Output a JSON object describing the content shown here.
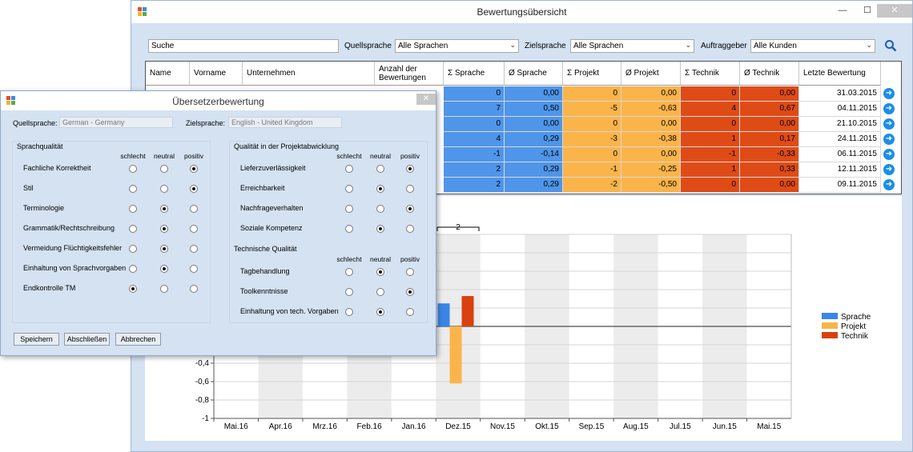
{
  "main_window": {
    "title": "Bewertungsübersicht",
    "controls": {
      "minimize": "—",
      "maximize": "☐",
      "close": "✕"
    }
  },
  "filters": {
    "search_value": "Suche",
    "source_label": "Quellsprache",
    "source_value": "Alle Sprachen",
    "target_label": "Zielsprache",
    "target_value": "Alle Sprachen",
    "client_label": "Auftraggeber",
    "client_value": "Alle Kunden"
  },
  "table": {
    "headers": [
      "Name",
      "Vorname",
      "Unternehmen",
      "Anzahl der Bewertungen",
      "Σ Sprache",
      "Ø Sprache",
      "Σ Projekt",
      "Ø Projekt",
      "Σ Technik",
      "Ø Technik",
      "Letzte Bewertung"
    ],
    "rows": [
      [
        "0",
        "0,00",
        "0",
        "0,00",
        "0",
        "0,00",
        "31.03.2015"
      ],
      [
        "7",
        "0,50",
        "-5",
        "-0,63",
        "4",
        "0,67",
        "04.11.2015"
      ],
      [
        "0",
        "0,00",
        "0",
        "0,00",
        "0",
        "0,00",
        "21.10.2015"
      ],
      [
        "4",
        "0,29",
        "-3",
        "-0,38",
        "1",
        "0,17",
        "24.11.2015"
      ],
      [
        "-1",
        "-0,14",
        "0",
        "0,00",
        "-1",
        "-0,33",
        "06.11.2015"
      ],
      [
        "2",
        "0,29",
        "-1",
        "-0,25",
        "1",
        "0,33",
        "12.11.2015"
      ],
      [
        "2",
        "0,29",
        "-2",
        "-0,50",
        "0",
        "0,00",
        "09.11.2015"
      ]
    ]
  },
  "chart_data": {
    "type": "bar",
    "categories": [
      "Mai.16",
      "Apr.16",
      "Mrz.16",
      "Feb.16",
      "Jan.16",
      "Dez.15",
      "Nov.15",
      "Okt.15",
      "Sep.15",
      "Aug.15",
      "Jul.15",
      "Jun.15",
      "Mai.15"
    ],
    "series": [
      {
        "name": "Sprache",
        "color": "#3a86e6",
        "values": [
          0,
          0,
          0,
          0,
          0,
          0.25,
          0,
          0,
          0,
          0,
          0,
          0,
          0
        ]
      },
      {
        "name": "Projekt",
        "color": "#fbb44a",
        "values": [
          0,
          0,
          0,
          0,
          0,
          -0.62,
          0,
          0,
          0,
          0,
          0,
          0,
          0
        ]
      },
      {
        "name": "Technik",
        "color": "#d9410f",
        "values": [
          0,
          0,
          0,
          0,
          0,
          0.33,
          0,
          0,
          0,
          0,
          0,
          0,
          0
        ]
      }
    ],
    "y_ticks": [
      "-0,4",
      "-0,6",
      "-0,8",
      "-1"
    ],
    "annotation": "2",
    "ylim": [
      -1,
      1
    ],
    "grid": true,
    "legend": "right"
  },
  "dialog": {
    "title": "Übersetzerbewertung",
    "close": "✕",
    "source_label": "Quellsprache:",
    "source_value": "German - Germany",
    "target_label": "Zielsprache:",
    "target_value": "English - United Kingdom",
    "col_bad": "schlecht",
    "col_neutral": "neutral",
    "col_good": "positiv",
    "language_quality": {
      "title": "Sprachqualität",
      "items": [
        {
          "label": "Fachliche Korrektheit",
          "selected": 2
        },
        {
          "label": "Stil",
          "selected": 2
        },
        {
          "label": "Terminologie",
          "selected": 1
        },
        {
          "label": "Grammatik/Rechtschreibung",
          "selected": 1
        },
        {
          "label": "Vermeidung Flüchtigkeitsfehler",
          "selected": 1
        },
        {
          "label": "Einhaltung von Sprachvorgaben",
          "selected": 1
        },
        {
          "label": "Endkontrolle TM",
          "selected": 0
        }
      ]
    },
    "project_quality": {
      "title": "Qualität in der Projektabwicklung",
      "items": [
        {
          "label": "Lieferzuverlässigkeit",
          "selected": 2
        },
        {
          "label": "Erreichbarkeit",
          "selected": 1
        },
        {
          "label": "Nachfrageverhalten",
          "selected": 2
        },
        {
          "label": "Soziale Kompetenz",
          "selected": 1
        }
      ]
    },
    "technical_quality": {
      "title": "Technische Qualität",
      "items": [
        {
          "label": "Tagbehandlung",
          "selected": 1
        },
        {
          "label": "Toolkenntnisse",
          "selected": 2
        },
        {
          "label": "Einhaltung von tech. Vorgaben",
          "selected": 1
        }
      ]
    },
    "buttons": {
      "save": "Speichern",
      "finish": "Abschließen",
      "cancel": "Abbrechen"
    }
  }
}
